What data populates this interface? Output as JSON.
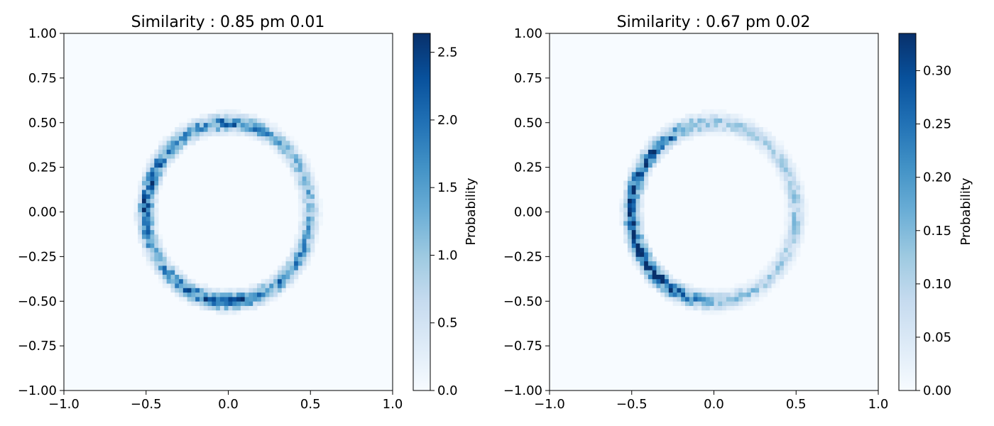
{
  "chart_data": [
    {
      "type": "heatmap",
      "title": "Similarity : 0.85 pm 0.01",
      "xlim": [
        -1.0,
        1.0
      ],
      "ylim": [
        -1.0,
        1.0
      ],
      "x_ticks": [
        "−1.0",
        "−0.5",
        "0.0",
        "0.5",
        "1.0"
      ],
      "y_ticks": [
        "1.00",
        "0.75",
        "0.50",
        "0.25",
        "0.00",
        "−0.25",
        "−0.50",
        "−0.75",
        "−1.00"
      ],
      "colormap": "Blues",
      "colorbar": {
        "label": "Probability",
        "range": [
          0.0,
          2.64
        ],
        "ticks": [
          "0.0",
          "0.5",
          "1.0",
          "1.5",
          "2.0",
          "2.5"
        ]
      },
      "ring": {
        "center": [
          0.0,
          0.0
        ],
        "radius": 0.5,
        "width": 0.03
      },
      "density_by_angle_deg": [
        [
          0,
          1.2
        ],
        [
          45,
          1.1
        ],
        [
          90,
          1.9
        ],
        [
          120,
          1.6
        ],
        [
          150,
          1.9
        ],
        [
          180,
          2.2
        ],
        [
          210,
          1.4
        ],
        [
          270,
          2.3
        ],
        [
          300,
          1.7
        ],
        [
          330,
          1.5
        ],
        [
          360,
          1.2
        ]
      ],
      "grid": false
    },
    {
      "type": "heatmap",
      "title": "Similarity : 0.67 pm 0.02",
      "xlim": [
        -1.0,
        1.0
      ],
      "ylim": [
        -1.0,
        1.0
      ],
      "x_ticks": [
        "−1.0",
        "−0.5",
        "0.0",
        "0.5",
        "1.0"
      ],
      "y_ticks": [
        "1.00",
        "0.75",
        "0.50",
        "0.25",
        "0.00",
        "−0.25",
        "−0.50",
        "−0.75",
        "−1.00"
      ],
      "colormap": "Blues",
      "colorbar": {
        "label": "Probability",
        "range": [
          0.0,
          0.335
        ],
        "ticks": [
          "0.00",
          "0.05",
          "0.10",
          "0.15",
          "0.20",
          "0.25",
          "0.30"
        ]
      },
      "ring": {
        "center": [
          0.0,
          0.0
        ],
        "radius": 0.5,
        "width": 0.03
      },
      "density_by_angle_deg": [
        [
          0,
          0.12
        ],
        [
          45,
          0.09
        ],
        [
          90,
          0.12
        ],
        [
          135,
          0.27
        ],
        [
          180,
          0.3
        ],
        [
          225,
          0.31
        ],
        [
          270,
          0.14
        ],
        [
          315,
          0.1
        ],
        [
          360,
          0.12
        ]
      ],
      "grid": false
    }
  ],
  "colors": {
    "blues_scale": [
      "#f7fbff",
      "#deebf7",
      "#c6dbef",
      "#9ecae1",
      "#6baed6",
      "#4292c6",
      "#2171b5",
      "#08519c",
      "#08306b"
    ],
    "axis": "#000000"
  }
}
